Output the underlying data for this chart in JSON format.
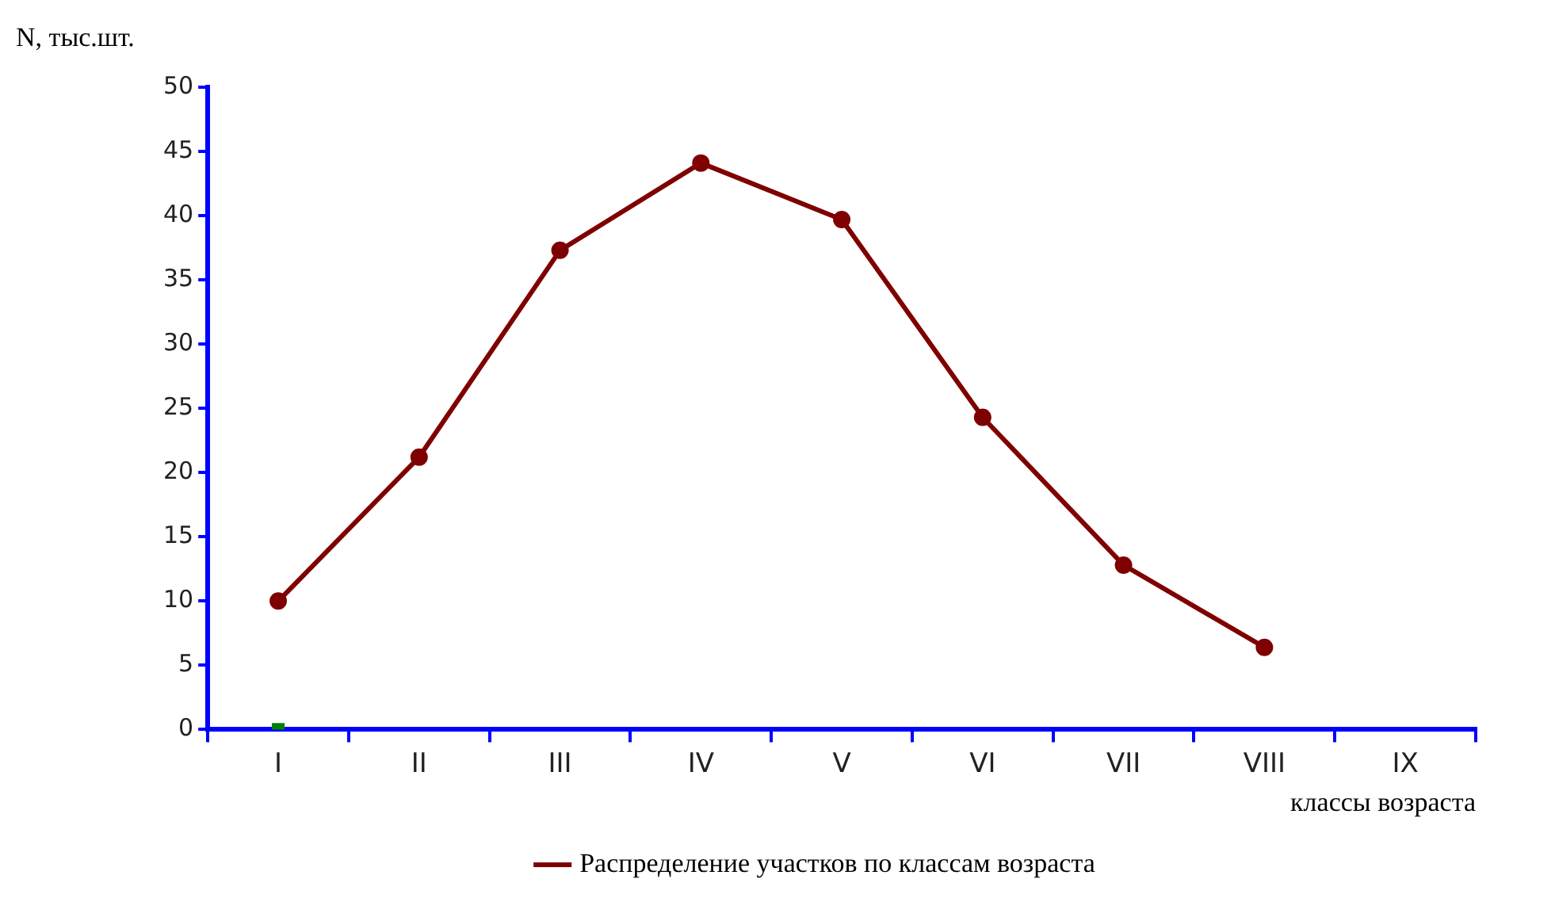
{
  "chart_data": {
    "type": "line",
    "ylabel": "N, тыс.шт.",
    "xlabel": "классы возраста",
    "categories": [
      "I",
      "II",
      "III",
      "IV",
      "V",
      "VI",
      "VII",
      "VIII",
      "IX"
    ],
    "series": [
      {
        "name": "Распределение участков по классам возраста",
        "color": "#7f0000",
        "values": [
          10.0,
          21.2,
          37.3,
          44.1,
          39.7,
          24.3,
          12.8,
          6.4,
          null
        ]
      },
      {
        "type": "scatter",
        "marker": "square",
        "color": "#008000",
        "values": [
          0,
          null,
          null,
          null,
          null,
          null,
          null,
          null,
          null
        ]
      }
    ],
    "ylim": [
      0,
      50
    ],
    "yticks": [
      0,
      5,
      10,
      15,
      20,
      25,
      30,
      35,
      40,
      45,
      50
    ],
    "grid": false,
    "legend": "bottom",
    "marker": "circle",
    "line_style": "solid"
  }
}
